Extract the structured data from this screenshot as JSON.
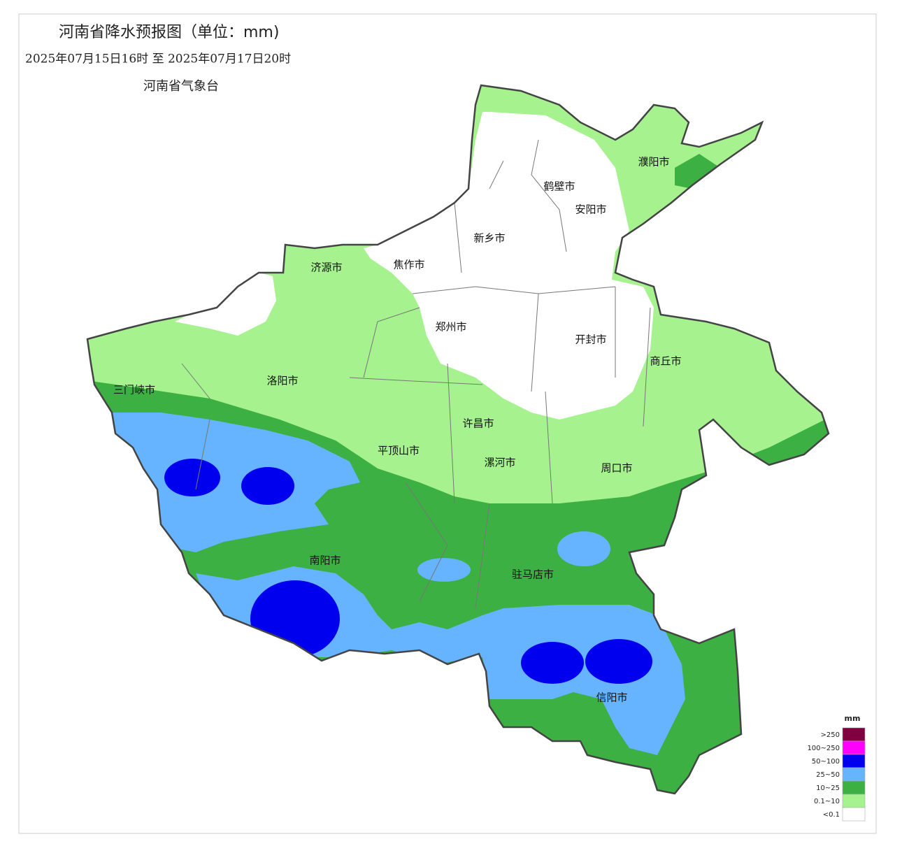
{
  "header": {
    "title": "河南省降水预报图（单位：mm)",
    "period": "2025年07月15日16时  至  2025年07月17日20时",
    "issuer": "河南省气象台"
  },
  "cities": [
    "濮阳市",
    "鹤壁市",
    "安阳市",
    "新乡市",
    "济源市",
    "焦作市",
    "郑州市",
    "开封市",
    "商丘市",
    "洛阳市",
    "三门峡市",
    "许昌市",
    "平顶山市",
    "漯河市",
    "周口市",
    "南阳市",
    "驻马店市",
    "信阳市"
  ],
  "legend": {
    "unit": "mm",
    "items": [
      {
        "label": ">250",
        "color": "#800040"
      },
      {
        "label": "100~250",
        "color": "#ff00ff"
      },
      {
        "label": "50~100",
        "color": "#0000ee"
      },
      {
        "label": "25~50",
        "color": "#66b3ff"
      },
      {
        "label": "10~25",
        "color": "#3cb043"
      },
      {
        "label": "0.1~10",
        "color": "#a6f28f"
      },
      {
        "label": "<0.1",
        "color": "#ffffff"
      }
    ]
  }
}
